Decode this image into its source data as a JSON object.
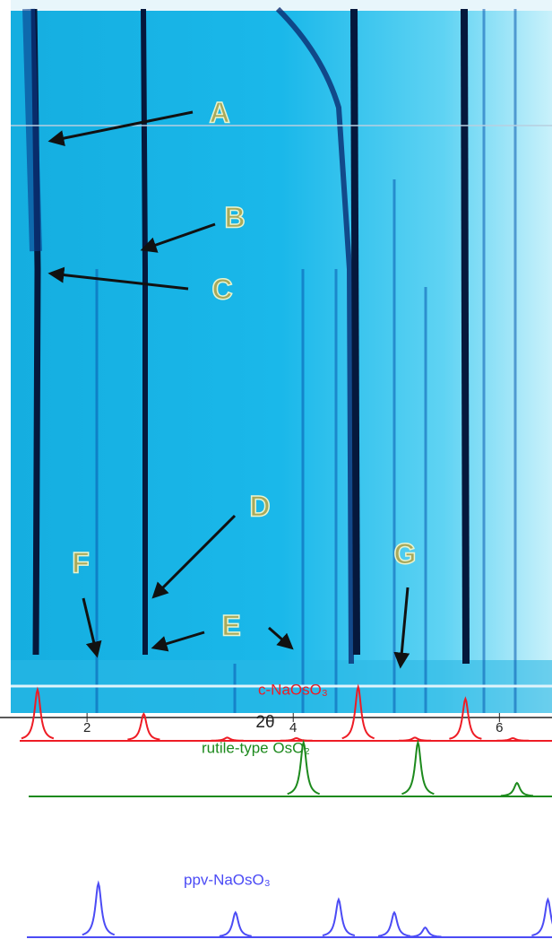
{
  "chart_data": {
    "type": "peaks",
    "xlabel": "2θ",
    "xlim": [
      1.26,
      6.51
    ],
    "xticks": [
      2,
      4,
      6
    ],
    "annotations": [
      "A",
      "B",
      "C",
      "D",
      "E",
      "F",
      "G"
    ],
    "series": [
      {
        "name": "c-NaOsO₃",
        "color": "#ee1c25",
        "x": [
          1.52,
          2.55,
          3.36,
          4.03,
          4.63,
          5.18,
          5.67,
          6.13
        ],
        "values": [
          95,
          50,
          6,
          5,
          100,
          6,
          78,
          5
        ]
      },
      {
        "name": "rutile-type OsO₂",
        "color": "#1d8a1d",
        "x": [
          4.1,
          5.21,
          6.17
        ],
        "values": [
          100,
          100,
          25
        ]
      },
      {
        "name": "ppv-NaOsO₃",
        "color": "#4b4bf5",
        "x": [
          2.11,
          3.44,
          4.44,
          4.98,
          5.28,
          6.47
        ],
        "values": [
          100,
          46,
          70,
          46,
          18,
          70
        ]
      }
    ]
  }
}
